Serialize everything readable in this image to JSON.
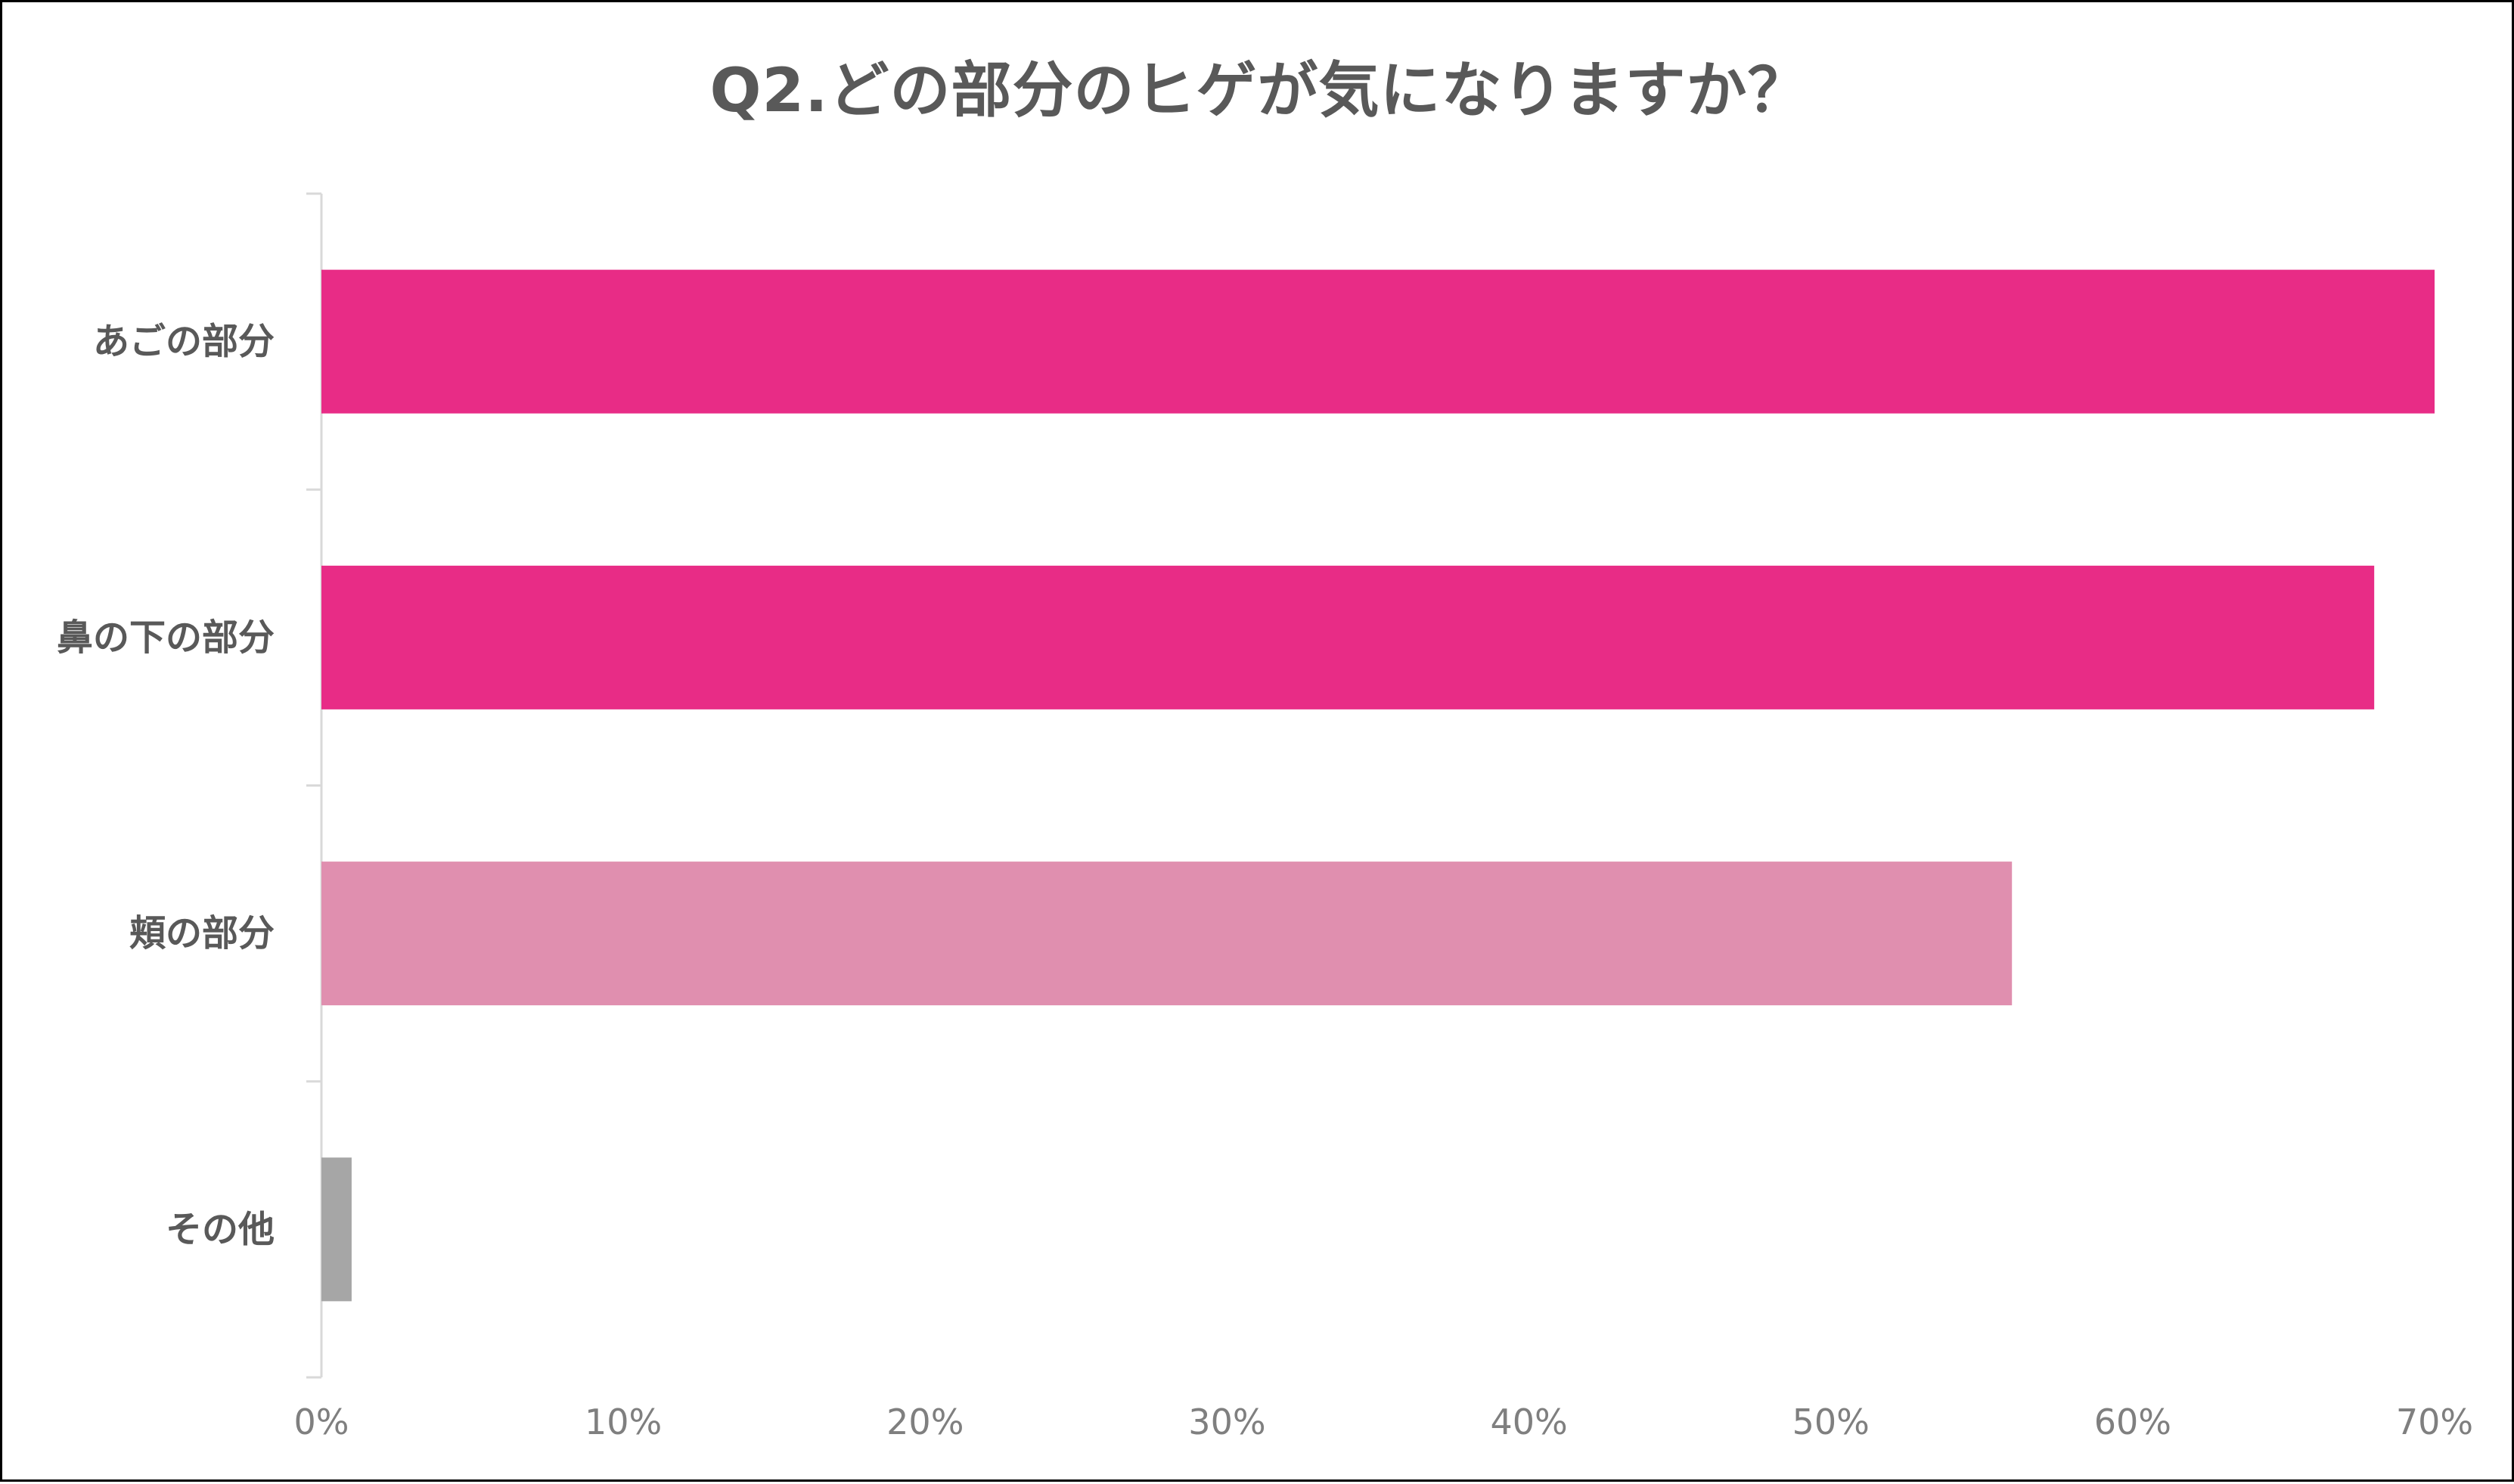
{
  "chart_data": {
    "type": "bar",
    "orientation": "horizontal",
    "title": "Q2.どの部分のヒゲが気になりますか？",
    "categories": [
      "あごの部分",
      "鼻の下の部分",
      "頬の部分",
      "その他"
    ],
    "values": [
      70,
      68,
      56,
      1
    ],
    "bar_colors": [
      "#E82C86",
      "#E82C86",
      "#E08FAF",
      "#A6A6A6"
    ],
    "xlim": [
      0,
      70
    ],
    "xticks": [
      0,
      10,
      20,
      30,
      40,
      50,
      60,
      70
    ],
    "xtick_labels": [
      "0%",
      "10%",
      "20%",
      "30%",
      "40%",
      "50%",
      "60%",
      "70%"
    ],
    "value_unit": "%",
    "grid": false,
    "legend": "none"
  }
}
